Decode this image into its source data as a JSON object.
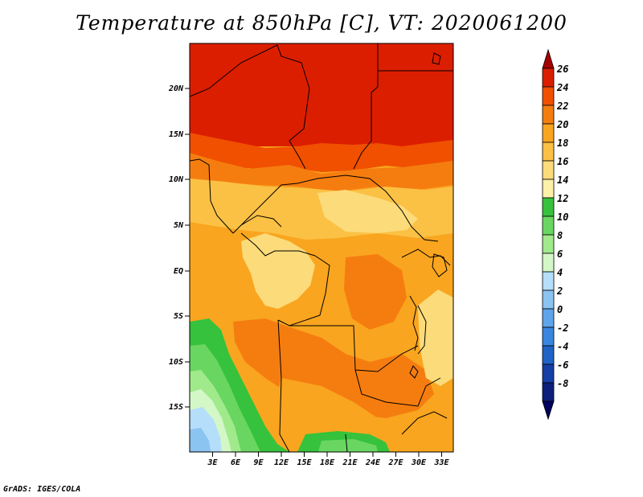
{
  "title": "Temperature at 850hPa [C], VT: 2020061200",
  "credit": "GrADS: IGES/COLA",
  "axes": {
    "lat_labels": [
      "20N",
      "15N",
      "10N",
      "5N",
      "EQ",
      "5S",
      "10S",
      "15S"
    ],
    "lon_labels": [
      "3E",
      "6E",
      "9E",
      "12E",
      "15E",
      "18E",
      "21E",
      "24E",
      "27E",
      "30E",
      "33E"
    ]
  },
  "colorbar": {
    "labels": [
      "26",
      "24",
      "22",
      "20",
      "18",
      "16",
      "14",
      "12",
      "10",
      "8",
      "6",
      "4",
      "2",
      "0",
      "-2",
      "-4",
      "-6",
      "-8"
    ],
    "colors": [
      "#a50000",
      "#dc1e00",
      "#f05000",
      "#f57d0f",
      "#f9a51f",
      "#fbc145",
      "#fcdb7a",
      "#fdf0a7",
      "#36c23c",
      "#6ad662",
      "#a0ea8c",
      "#d4f7c8",
      "#b4def9",
      "#8bc3f1",
      "#5ea4ea",
      "#3886e0",
      "#1f63c7",
      "#153ea6",
      "#0c1f7a",
      "#000060"
    ]
  },
  "chart_data": {
    "type": "heatmap",
    "title": "Temperature at 850hPa [C], VT: 2020061200",
    "variable": "Temperature at 850hPa",
    "units": "C",
    "valid_time": "2020061200",
    "lon_range": [
      0,
      35
    ],
    "lat_range": [
      -19,
      25
    ],
    "x_ticks": [
      "3E",
      "6E",
      "9E",
      "12E",
      "15E",
      "18E",
      "21E",
      "24E",
      "27E",
      "30E",
      "33E"
    ],
    "y_ticks": [
      "20N",
      "15N",
      "10N",
      "5N",
      "EQ",
      "5S",
      "10S",
      "15S"
    ],
    "color_levels": [
      -8,
      -6,
      -4,
      -2,
      0,
      2,
      4,
      6,
      8,
      10,
      12,
      14,
      16,
      18,
      20,
      22,
      24,
      26
    ],
    "regions": [
      {
        "area": "north of 14N",
        "value_range": [
          24,
          26
        ]
      },
      {
        "area": "13N to 11N",
        "value_range": [
          22,
          24
        ]
      },
      {
        "area": "11N to 5N",
        "value_range": [
          18,
          20
        ]
      },
      {
        "area": "Gabon/Congo lowlands near EQ",
        "value_range": [
          16,
          18
        ]
      },
      {
        "area": "central Congo basin",
        "value_range": [
          20,
          22
        ]
      },
      {
        "area": "Angola interior 8S-12S",
        "value_range": [
          20,
          22
        ]
      },
      {
        "area": "Angola/Namibia coast 6S-12S",
        "value_range": [
          12,
          14
        ]
      },
      {
        "area": "southwest coastal ocean 14S-19S",
        "value_range": [
          6,
          10
        ]
      }
    ]
  }
}
